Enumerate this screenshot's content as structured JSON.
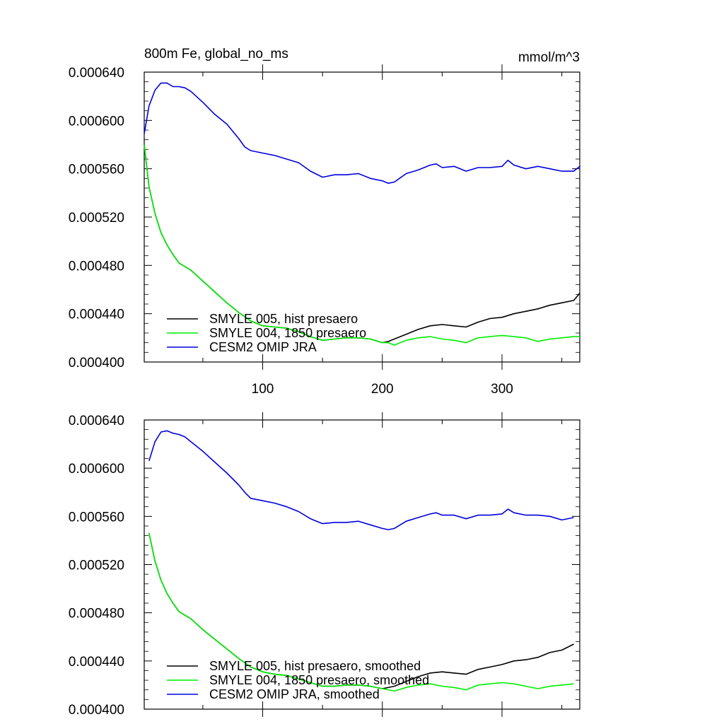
{
  "chart_data": [
    {
      "type": "line",
      "title": "800m Fe, global_no_ms",
      "units": "mmol/m^3",
      "ylim": [
        0.0004,
        0.00064
      ],
      "xlim": [
        1,
        365
      ],
      "y_ticks": [
        "0.000400",
        "0.000440",
        "0.000480",
        "0.000520",
        "0.000560",
        "0.000600",
        "0.000640"
      ],
      "x_ticks": [
        "100",
        "200",
        "300"
      ],
      "legend_position": "bottom-left",
      "series": [
        {
          "name": "SMYLE 005, hist presaero",
          "color": "#000000",
          "x": [
            1,
            5,
            10,
            15,
            20,
            25,
            30,
            40,
            50,
            60,
            70,
            80,
            90,
            100,
            110,
            120,
            130,
            140,
            150,
            160,
            170,
            180,
            190,
            200,
            205,
            210,
            220,
            230,
            240,
            250,
            260,
            270,
            280,
            290,
            300,
            310,
            320,
            330,
            340,
            350,
            360,
            365
          ],
          "y": [
            0.00058,
            0.000545,
            0.000523,
            0.000507,
            0.000497,
            0.000489,
            0.000482,
            0.000476,
            0.000467,
            0.000458,
            0.000449,
            0.000441,
            0.000434,
            0.00043,
            0.000429,
            0.000428,
            0.000425,
            0.000421,
            0.000418,
            0.000419,
            0.00042,
            0.00042,
            0.000419,
            0.000416,
            0.000417,
            0.000419,
            0.000423,
            0.000427,
            0.00043,
            0.000431,
            0.00043,
            0.000429,
            0.000433,
            0.000436,
            0.000437,
            0.00044,
            0.000442,
            0.000444,
            0.000447,
            0.000449,
            0.000451,
            0.000457
          ]
        },
        {
          "name": "SMYLE 004, 1850 presaero",
          "color": "#00ee00",
          "x": [
            1,
            5,
            10,
            15,
            20,
            25,
            30,
            40,
            50,
            60,
            70,
            80,
            90,
            100,
            110,
            120,
            130,
            140,
            150,
            160,
            170,
            180,
            190,
            200,
            205,
            210,
            220,
            230,
            240,
            250,
            260,
            270,
            280,
            290,
            300,
            310,
            320,
            330,
            340,
            350,
            360,
            365
          ],
          "y": [
            0.00058,
            0.000545,
            0.000523,
            0.000507,
            0.000497,
            0.000489,
            0.000482,
            0.000476,
            0.000467,
            0.000458,
            0.000449,
            0.000441,
            0.000434,
            0.00043,
            0.000429,
            0.000428,
            0.000425,
            0.000421,
            0.000418,
            0.000419,
            0.00042,
            0.00042,
            0.000419,
            0.000416,
            0.000416,
            0.000414,
            0.000418,
            0.00042,
            0.000421,
            0.000419,
            0.000418,
            0.000416,
            0.00042,
            0.000421,
            0.000422,
            0.000421,
            0.00042,
            0.000417,
            0.000419,
            0.00042,
            0.000421,
            0.000421
          ]
        },
        {
          "name": "CESM2 OMIP JRA",
          "color": "#0000dd",
          "x": [
            1,
            5,
            10,
            15,
            20,
            25,
            30,
            35,
            40,
            50,
            60,
            70,
            80,
            85,
            90,
            100,
            110,
            120,
            130,
            140,
            150,
            160,
            170,
            180,
            190,
            200,
            205,
            210,
            220,
            230,
            240,
            245,
            250,
            260,
            270,
            280,
            290,
            300,
            305,
            310,
            320,
            330,
            340,
            350,
            360,
            365
          ],
          "y": [
            0.000589,
            0.000612,
            0.000625,
            0.000631,
            0.000631,
            0.000628,
            0.000628,
            0.000627,
            0.000624,
            0.000615,
            0.000605,
            0.000597,
            0.000585,
            0.000578,
            0.000575,
            0.000573,
            0.000571,
            0.000568,
            0.000565,
            0.000558,
            0.000553,
            0.000555,
            0.000555,
            0.000556,
            0.000552,
            0.00055,
            0.000548,
            0.000549,
            0.000556,
            0.000559,
            0.000563,
            0.000564,
            0.000561,
            0.000562,
            0.000558,
            0.000561,
            0.000561,
            0.000562,
            0.000567,
            0.000563,
            0.00056,
            0.000562,
            0.00056,
            0.000558,
            0.000558,
            0.000562
          ]
        }
      ]
    },
    {
      "type": "line",
      "title": "",
      "ylim": [
        0.0004,
        0.00064
      ],
      "xlim": [
        1,
        365
      ],
      "y_ticks": [
        "0.000400",
        "0.000440",
        "0.000480",
        "0.000520",
        "0.000560",
        "0.000600",
        "0.000640"
      ],
      "legend_position": "bottom-left",
      "series": [
        {
          "name": "SMYLE 005, hist presaero, smoothed",
          "color": "#000000",
          "x": [
            5,
            10,
            15,
            20,
            25,
            30,
            40,
            50,
            60,
            70,
            80,
            90,
            100,
            110,
            120,
            130,
            140,
            150,
            160,
            170,
            180,
            190,
            200,
            210,
            220,
            230,
            240,
            250,
            260,
            270,
            280,
            290,
            300,
            310,
            320,
            330,
            340,
            350,
            360
          ],
          "y": [
            0.000546,
            0.000523,
            0.000507,
            0.000496,
            0.000488,
            0.000481,
            0.000475,
            0.000466,
            0.000458,
            0.00045,
            0.000442,
            0.000435,
            0.000431,
            0.000429,
            0.000428,
            0.000425,
            0.000422,
            0.000419,
            0.000419,
            0.00042,
            0.00042,
            0.000419,
            0.000417,
            0.000419,
            0.000423,
            0.000427,
            0.00043,
            0.000431,
            0.00043,
            0.000429,
            0.000433,
            0.000435,
            0.000437,
            0.00044,
            0.000441,
            0.000443,
            0.000447,
            0.000449,
            0.000454
          ]
        },
        {
          "name": "SMYLE 004, 1850 presaero, smoothed",
          "color": "#00ee00",
          "x": [
            5,
            10,
            15,
            20,
            25,
            30,
            40,
            50,
            60,
            70,
            80,
            90,
            100,
            110,
            120,
            130,
            140,
            150,
            160,
            170,
            180,
            190,
            200,
            210,
            220,
            230,
            240,
            250,
            260,
            270,
            280,
            290,
            300,
            310,
            320,
            330,
            340,
            350,
            360
          ],
          "y": [
            0.000546,
            0.000523,
            0.000507,
            0.000496,
            0.000488,
            0.000481,
            0.000475,
            0.000466,
            0.000458,
            0.00045,
            0.000442,
            0.000435,
            0.000431,
            0.000429,
            0.000428,
            0.000425,
            0.000422,
            0.000419,
            0.000419,
            0.00042,
            0.00042,
            0.000419,
            0.000417,
            0.000415,
            0.000418,
            0.00042,
            0.000421,
            0.000419,
            0.000418,
            0.000416,
            0.00042,
            0.000421,
            0.000422,
            0.000421,
            0.000419,
            0.000417,
            0.000419,
            0.00042,
            0.000421
          ]
        },
        {
          "name": "CESM2 OMIP JRA, smoothed",
          "color": "#0000dd",
          "x": [
            5,
            10,
            15,
            20,
            25,
            30,
            35,
            40,
            50,
            60,
            70,
            80,
            85,
            90,
            100,
            110,
            120,
            130,
            140,
            150,
            160,
            170,
            180,
            190,
            200,
            205,
            210,
            220,
            230,
            240,
            245,
            250,
            260,
            270,
            280,
            290,
            300,
            305,
            310,
            320,
            330,
            340,
            350,
            360
          ],
          "y": [
            0.000606,
            0.000622,
            0.00063,
            0.000631,
            0.000629,
            0.000628,
            0.000626,
            0.000622,
            0.000614,
            0.000605,
            0.000596,
            0.000586,
            0.00058,
            0.000575,
            0.000573,
            0.000571,
            0.000568,
            0.000564,
            0.000558,
            0.000554,
            0.000555,
            0.000555,
            0.000556,
            0.000553,
            0.00055,
            0.000549,
            0.00055,
            0.000556,
            0.000559,
            0.000562,
            0.000563,
            0.000561,
            0.000561,
            0.000558,
            0.000561,
            0.000561,
            0.000562,
            0.000566,
            0.000563,
            0.000561,
            0.000561,
            0.00056,
            0.000557,
            0.000559
          ]
        }
      ]
    }
  ]
}
